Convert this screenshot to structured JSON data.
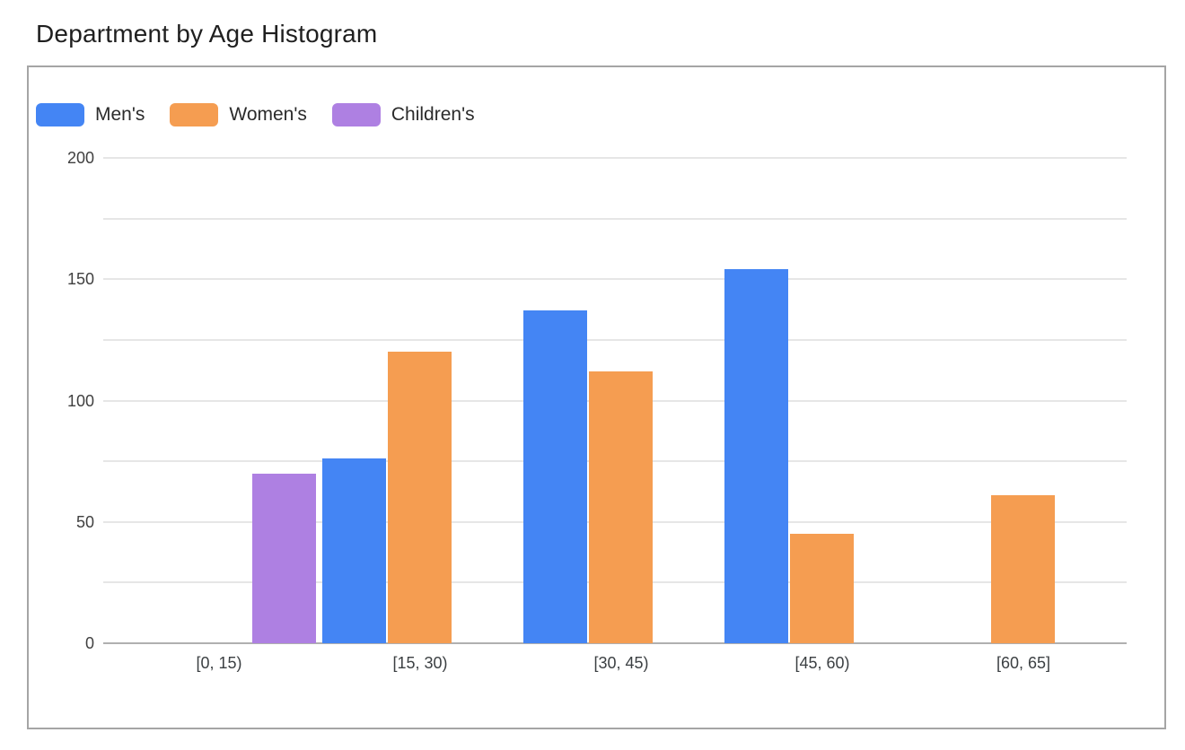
{
  "title": "Department by Age Histogram",
  "legend": {
    "position": "top-left",
    "items": [
      {
        "label": "Men's",
        "color": "#4485F4"
      },
      {
        "label": "Women's",
        "color": "#F59D51"
      },
      {
        "label": "Children's",
        "color": "#AE80E2"
      }
    ]
  },
  "chart_data": {
    "type": "bar",
    "title": "Department by Age Histogram",
    "categories": [
      "[0, 15)",
      "[15, 30)",
      "[30, 45)",
      "[45, 60)",
      "[60, 65]"
    ],
    "series": [
      {
        "name": "Men's",
        "color": "#4485F4",
        "values": [
          0,
          76,
          137,
          154,
          0
        ]
      },
      {
        "name": "Women's",
        "color": "#F59D51",
        "values": [
          0,
          120,
          112,
          45,
          61
        ]
      },
      {
        "name": "Children's",
        "color": "#AE80E2",
        "values": [
          70,
          0,
          0,
          0,
          0
        ]
      }
    ],
    "xlabel": "",
    "ylabel": "",
    "ylim": [
      0,
      200
    ],
    "yticks": [
      0,
      50,
      100,
      150,
      200
    ],
    "grid": true,
    "gridline_interval": 25,
    "legend_position": "top-left"
  },
  "colors": {
    "background": "#ffffff",
    "frame_border": "#a5a5a5",
    "gridline": "#e6e6e6",
    "axis_baseline": "#b0b0b0",
    "title_text": "#1f1f1f",
    "legend_text": "#2b2b2b",
    "tick_text": "#404040"
  }
}
